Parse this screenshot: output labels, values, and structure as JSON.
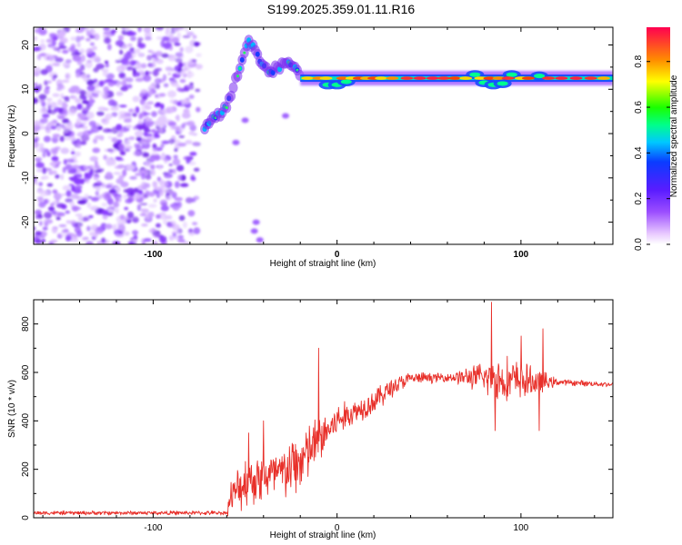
{
  "title": "S199.2025.359.01.11.R16",
  "chart_data": [
    {
      "type": "heatmap",
      "name": "spectrogram",
      "xlabel": "Height of straight line (km)",
      "ylabel": "Frequency (Hz)",
      "xlim": [
        -165,
        150
      ],
      "ylim": [
        -25,
        24
      ],
      "xticks": [
        -100,
        0,
        100
      ],
      "yticks": [
        -20,
        -10,
        0,
        10,
        20
      ],
      "colorbar": {
        "label": "Normalized spectral amplitude",
        "range": [
          0.0,
          0.95
        ],
        "ticks": [
          0.0,
          0.2,
          0.4,
          0.6,
          0.8
        ],
        "tick_labels": [
          "0.0",
          "0.2",
          "0.4",
          "0.6",
          "0.8"
        ]
      },
      "features": {
        "noise_region_x": [
          -165,
          -75
        ],
        "ridge": [
          {
            "x": -72,
            "f": 1.5
          },
          {
            "x": -60,
            "f": 6
          },
          {
            "x": -48,
            "f": 21
          },
          {
            "x": -38,
            "f": 14
          },
          {
            "x": -25,
            "f": 16
          },
          {
            "x": -20,
            "f": 13
          },
          {
            "x": -5,
            "f": 12
          },
          {
            "x": 0,
            "f": 11
          },
          {
            "x": 10,
            "f": 12.5
          },
          {
            "x": 150,
            "f": 12.5
          }
        ],
        "line_frequency": 12.5,
        "line_x_range": [
          -20,
          150
        ]
      }
    },
    {
      "type": "line",
      "name": "snr",
      "xlabel": "Height of straight line (km)",
      "ylabel": "SNR (10 * v/v)",
      "xlim": [
        -165,
        150
      ],
      "ylim": [
        0,
        900
      ],
      "xticks": [
        -100,
        0,
        100
      ],
      "yticks": [
        0,
        200,
        400,
        600,
        800
      ],
      "color": "#e8302a",
      "envelope": [
        {
          "x": -165,
          "base": 20,
          "amp": 10
        },
        {
          "x": -60,
          "base": 20,
          "amp": 10
        },
        {
          "x": -58,
          "base": 80,
          "amp": 80
        },
        {
          "x": -50,
          "base": 150,
          "amp": 130
        },
        {
          "x": -40,
          "base": 170,
          "amp": 120
        },
        {
          "x": -30,
          "base": 180,
          "amp": 130
        },
        {
          "x": -20,
          "base": 230,
          "amp": 160
        },
        {
          "x": -10,
          "base": 320,
          "amp": 120
        },
        {
          "x": 0,
          "base": 400,
          "amp": 80
        },
        {
          "x": 10,
          "base": 440,
          "amp": 60
        },
        {
          "x": 20,
          "base": 480,
          "amp": 60
        },
        {
          "x": 30,
          "base": 540,
          "amp": 50
        },
        {
          "x": 40,
          "base": 575,
          "amp": 30
        },
        {
          "x": 60,
          "base": 580,
          "amp": 20
        },
        {
          "x": 75,
          "base": 580,
          "amp": 60
        },
        {
          "x": 90,
          "base": 570,
          "amp": 120
        },
        {
          "x": 110,
          "base": 560,
          "amp": 60
        },
        {
          "x": 120,
          "base": 560,
          "amp": 15
        },
        {
          "x": 150,
          "base": 550,
          "amp": 12
        }
      ],
      "spikes": [
        {
          "x": -10,
          "y": 700
        },
        {
          "x": 84,
          "y": 890
        },
        {
          "x": 86,
          "y": 360
        },
        {
          "x": 112,
          "y": 780
        },
        {
          "x": 110,
          "y": 360
        },
        {
          "x": 100,
          "y": 750
        },
        {
          "x": -48,
          "y": 350
        },
        {
          "x": -40,
          "y": 400
        }
      ]
    }
  ]
}
